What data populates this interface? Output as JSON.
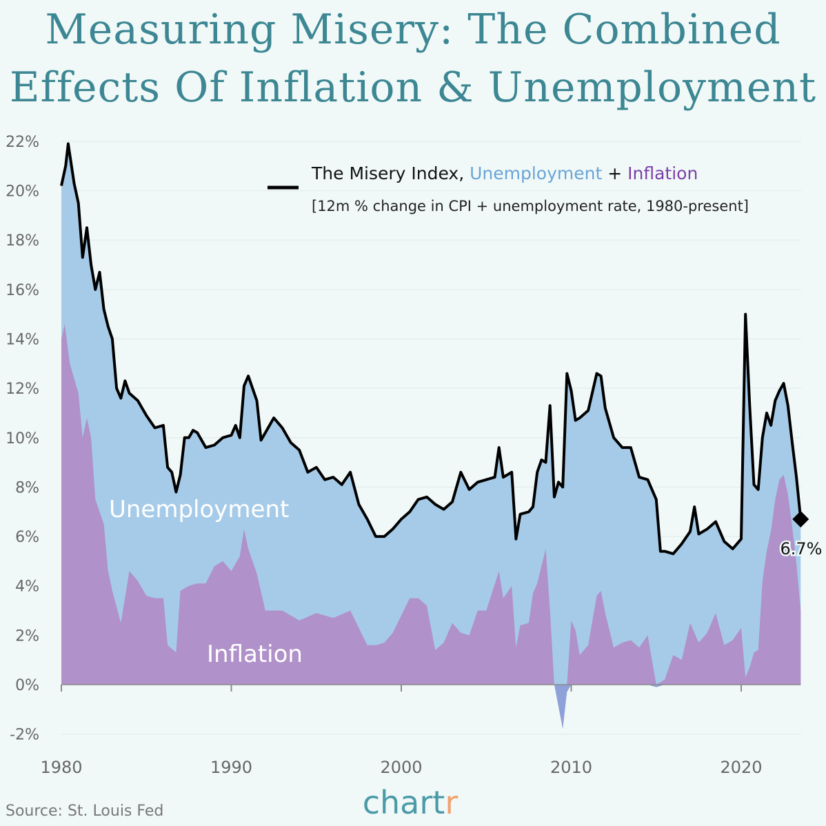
{
  "title_line1": "Measuring Misery: The Combined",
  "title_line2": "Effects Of Inflation & Unemployment",
  "source": "Source: St. Louis Fed",
  "logo": {
    "main": "chart",
    "accent": "r"
  },
  "colors": {
    "title": "#3c8793",
    "unemployment": "#a6cbe8",
    "inflation": "#b091c9",
    "negative_inflation": "#8ea2d9",
    "misery_line": "#000000",
    "logo_main": "#4a9aa8",
    "logo_accent": "#f0a36e",
    "legend_unemployment": "#6aa4d6",
    "legend_inflation": "#7b3fa8"
  },
  "chart_data": {
    "type": "area",
    "legend": {
      "prefix": "The Misery Index, ",
      "unemployment": "Unemployment",
      "plus": " + ",
      "inflation": "Inflation",
      "subtitle": "[12m % change in CPI + unemployment rate, 1980-present]",
      "placement": "top-right"
    },
    "area_labels": {
      "unemployment": "Unemployment",
      "inflation": "Inflation"
    },
    "end_label": "6.7%",
    "xlim": [
      1980,
      2023.6
    ],
    "ylim": [
      -2,
      22
    ],
    "x_ticks": [
      1980,
      1990,
      2000,
      2010,
      2020
    ],
    "x_tick_labels": [
      "1980",
      "1990",
      "2000",
      "2010",
      "2020"
    ],
    "y_ticks": [
      -2,
      0,
      2,
      4,
      6,
      8,
      10,
      12,
      14,
      16,
      18,
      20,
      22
    ],
    "y_tick_labels": [
      "-2%",
      "0%",
      "2%",
      "4%",
      "6%",
      "8%",
      "10%",
      "12%",
      "14%",
      "16%",
      "18%",
      "20%",
      "22%"
    ],
    "grid": true,
    "misery_index": {
      "x": [
        1980,
        1980.25,
        1980.4,
        1980.75,
        1981,
        1981.25,
        1981.5,
        1981.75,
        1982,
        1982.25,
        1982.5,
        1982.75,
        1983,
        1983.25,
        1983.5,
        1983.75,
        1984,
        1984.5,
        1985,
        1985.5,
        1986,
        1986.25,
        1986.5,
        1986.75,
        1987,
        1987.25,
        1987.5,
        1987.75,
        1988,
        1988.5,
        1989,
        1989.5,
        1990,
        1990.25,
        1990.5,
        1990.75,
        1991,
        1991.5,
        1991.75,
        1992,
        1992.5,
        1993,
        1993.5,
        1994,
        1994.5,
        1995,
        1995.5,
        1996,
        1996.5,
        1997,
        1997.5,
        1998,
        1998.5,
        1999,
        1999.5,
        2000,
        2000.5,
        2001,
        2001.5,
        2002,
        2002.5,
        2003,
        2003.5,
        2004,
        2004.5,
        2005,
        2005.5,
        2005.75,
        2006,
        2006.5,
        2006.75,
        2007,
        2007.5,
        2007.75,
        2008,
        2008.25,
        2008.5,
        2008.75,
        2009,
        2009.25,
        2009.5,
        2009.75,
        2010,
        2010.25,
        2010.5,
        2011,
        2011.5,
        2011.75,
        2012,
        2012.5,
        2013,
        2013.5,
        2014,
        2014.5,
        2015,
        2015.25,
        2015.5,
        2016,
        2016.5,
        2017,
        2017.25,
        2017.5,
        2018,
        2018.5,
        2019,
        2019.5,
        2020,
        2020.25,
        2020.5,
        2020.75,
        2021,
        2021.25,
        2021.5,
        2021.75,
        2022,
        2022.25,
        2022.5,
        2022.75,
        2023,
        2023.25,
        2023.5
      ],
      "y": [
        20.2,
        21.0,
        21.9,
        20.3,
        19.5,
        17.3,
        18.5,
        17.0,
        16.0,
        16.7,
        15.2,
        14.5,
        14.0,
        12.0,
        11.6,
        12.3,
        11.8,
        11.5,
        10.9,
        10.4,
        10.5,
        8.8,
        8.6,
        7.8,
        8.5,
        10.0,
        10.0,
        10.3,
        10.2,
        9.6,
        9.7,
        10.0,
        10.1,
        10.5,
        10.0,
        12.1,
        12.5,
        11.5,
        9.9,
        10.2,
        10.8,
        10.4,
        9.8,
        9.5,
        8.6,
        8.8,
        8.3,
        8.4,
        8.1,
        8.6,
        7.3,
        6.7,
        6.0,
        6.0,
        6.3,
        6.7,
        7.0,
        7.5,
        7.6,
        7.3,
        7.1,
        7.4,
        8.6,
        7.9,
        8.2,
        8.3,
        8.4,
        9.6,
        8.4,
        8.6,
        5.9,
        6.9,
        7.0,
        7.2,
        8.6,
        9.1,
        9.0,
        11.3,
        7.6,
        8.2,
        8.0,
        12.6,
        11.9,
        10.7,
        10.8,
        11.1,
        12.6,
        12.5,
        11.2,
        10.0,
        9.6,
        9.6,
        8.4,
        8.3,
        7.5,
        5.4,
        5.4,
        5.3,
        5.7,
        6.2,
        7.2,
        6.1,
        6.3,
        6.6,
        5.8,
        5.5,
        5.9,
        15.0,
        11.3,
        8.1,
        7.9,
        10.0,
        11.0,
        10.5,
        11.5,
        11.9,
        12.2,
        11.3,
        9.8,
        8.4,
        6.7
      ]
    },
    "inflation": {
      "x": [
        1980,
        1980.2,
        1980.5,
        1981,
        1981.25,
        1981.5,
        1981.75,
        1982,
        1982.5,
        1982.75,
        1983,
        1983.5,
        1984,
        1984.5,
        1985,
        1985.5,
        1986,
        1986.25,
        1986.75,
        1987,
        1987.5,
        1988,
        1988.5,
        1989,
        1989.5,
        1990,
        1990.5,
        1990.75,
        1991,
        1991.5,
        1992,
        1993,
        1994,
        1995,
        1996,
        1997,
        1997.5,
        1998,
        1998.5,
        1999,
        1999.5,
        2000,
        2000.5,
        2001,
        2001.5,
        2002,
        2002.5,
        2003,
        2003.5,
        2004,
        2004.5,
        2005,
        2005.75,
        2006,
        2006.5,
        2006.75,
        2007,
        2007.5,
        2007.75,
        2008,
        2008.5,
        2008.75,
        2009,
        2009.5,
        2009.75,
        2010,
        2010.25,
        2010.5,
        2011,
        2011.5,
        2011.75,
        2012,
        2012.5,
        2013,
        2013.5,
        2014,
        2014.5,
        2015,
        2015.5,
        2016,
        2016.5,
        2017,
        2017.5,
        2018,
        2018.5,
        2019,
        2019.5,
        2020,
        2020.25,
        2020.5,
        2020.75,
        2021,
        2021.25,
        2021.5,
        2021.75,
        2022,
        2022.25,
        2022.5,
        2022.75,
        2023,
        2023.25,
        2023.5
      ],
      "y": [
        14.0,
        14.6,
        13.0,
        11.8,
        10.0,
        10.8,
        10.0,
        7.5,
        6.5,
        4.6,
        3.8,
        2.5,
        4.6,
        4.2,
        3.6,
        3.5,
        3.5,
        1.6,
        1.3,
        3.8,
        4.0,
        4.1,
        4.1,
        4.8,
        5.0,
        4.6,
        5.2,
        6.3,
        5.5,
        4.5,
        3.0,
        3.0,
        2.6,
        2.9,
        2.7,
        3.0,
        2.3,
        1.6,
        1.6,
        1.7,
        2.1,
        2.8,
        3.5,
        3.5,
        3.2,
        1.4,
        1.7,
        2.5,
        2.1,
        2.0,
        3.0,
        3.0,
        4.6,
        3.5,
        4.0,
        1.5,
        2.4,
        2.5,
        3.7,
        4.1,
        5.5,
        3.0,
        0.0,
        -1.8,
        -0.3,
        2.6,
        2.2,
        1.2,
        1.6,
        3.6,
        3.8,
        2.9,
        1.5,
        1.7,
        1.8,
        1.5,
        2.0,
        -0.1,
        0.2,
        1.2,
        1.0,
        2.5,
        1.7,
        2.1,
        2.9,
        1.6,
        1.8,
        2.3,
        0.3,
        0.7,
        1.3,
        1.4,
        4.2,
        5.4,
        6.2,
        7.5,
        8.3,
        8.5,
        7.7,
        6.4,
        4.9,
        3.0
      ]
    }
  }
}
